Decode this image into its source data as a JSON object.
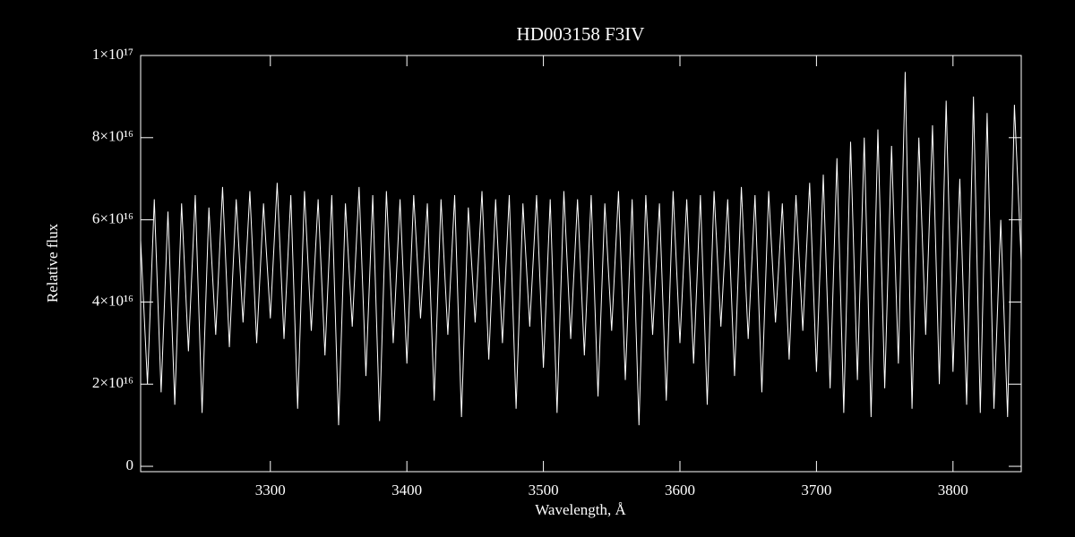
{
  "chart_data": {
    "type": "line",
    "title": "HD003158   F3IV",
    "xlabel": "Wavelength, Å",
    "ylabel": "Relative flux",
    "color": "#ffffff",
    "xlim": [
      3205,
      3850
    ],
    "ylim": [
      -1300000000000000.0,
      1e+17
    ],
    "xticks": [
      3300,
      3400,
      3500,
      3600,
      3700,
      3800
    ],
    "yticks": [
      0,
      {
        "value": 2e+16,
        "label": "2×10¹⁶"
      },
      {
        "value": 4e+16,
        "label": "4×10¹⁶"
      },
      {
        "value": 6e+16,
        "label": "6×10¹⁶"
      },
      {
        "value": 8e+16,
        "label": "8×10¹⁶"
      },
      {
        "value": 1e+17,
        "label": "1×10¹⁷"
      }
    ],
    "x": [
      3205,
      3210,
      3215,
      3220,
      3225,
      3230,
      3235,
      3240,
      3245,
      3250,
      3255,
      3260,
      3265,
      3270,
      3275,
      3280,
      3285,
      3290,
      3295,
      3300,
      3305,
      3310,
      3315,
      3320,
      3325,
      3330,
      3335,
      3340,
      3345,
      3350,
      3355,
      3360,
      3365,
      3370,
      3375,
      3380,
      3385,
      3390,
      3395,
      3400,
      3405,
      3410,
      3415,
      3420,
      3425,
      3430,
      3435,
      3440,
      3445,
      3450,
      3455,
      3460,
      3465,
      3470,
      3475,
      3480,
      3485,
      3490,
      3495,
      3500,
      3505,
      3510,
      3515,
      3520,
      3525,
      3530,
      3535,
      3540,
      3545,
      3550,
      3555,
      3560,
      3565,
      3570,
      3575,
      3580,
      3585,
      3590,
      3595,
      3600,
      3605,
      3610,
      3615,
      3620,
      3625,
      3630,
      3635,
      3640,
      3645,
      3650,
      3655,
      3660,
      3665,
      3670,
      3675,
      3680,
      3685,
      3690,
      3695,
      3700,
      3705,
      3710,
      3715,
      3720,
      3725,
      3730,
      3735,
      3740,
      3745,
      3750,
      3755,
      3760,
      3765,
      3770,
      3775,
      3780,
      3785,
      3790,
      3795,
      3800,
      3805,
      3810,
      3815,
      3820,
      3825,
      3830,
      3835,
      3840,
      3845,
      3850
    ],
    "values": [
      5.5e+16,
      2e+16,
      6.5e+16,
      1.8e+16,
      6.2e+16,
      1.5e+16,
      6.4e+16,
      2.8e+16,
      6.6e+16,
      1.3e+16,
      6.3e+16,
      3.2e+16,
      6.8e+16,
      2.9e+16,
      6.5e+16,
      3.5e+16,
      6.7e+16,
      3e+16,
      6.4e+16,
      3.6e+16,
      6.9e+16,
      3.1e+16,
      6.6e+16,
      1.4e+16,
      6.7e+16,
      3.3e+16,
      6.5e+16,
      2.7e+16,
      6.6e+16,
      1e+16,
      6.4e+16,
      3.4e+16,
      6.8e+16,
      2.2e+16,
      6.6e+16,
      1.1e+16,
      6.7e+16,
      3e+16,
      6.5e+16,
      2.5e+16,
      6.6e+16,
      3.6e+16,
      6.4e+16,
      1.6e+16,
      6.5e+16,
      3.2e+16,
      6.6e+16,
      1.2e+16,
      6.3e+16,
      3.5e+16,
      6.7e+16,
      2.6e+16,
      6.5e+16,
      3e+16,
      6.6e+16,
      1.4e+16,
      6.4e+16,
      3.4e+16,
      6.6e+16,
      2.4e+16,
      6.5e+16,
      1.3e+16,
      6.7e+16,
      3.1e+16,
      6.5e+16,
      2.7e+16,
      6.6e+16,
      1.7e+16,
      6.4e+16,
      3.3e+16,
      6.7e+16,
      2.1e+16,
      6.5e+16,
      1e+16,
      6.6e+16,
      3.2e+16,
      6.4e+16,
      1.6e+16,
      6.7e+16,
      3e+16,
      6.5e+16,
      2.5e+16,
      6.6e+16,
      1.5e+16,
      6.7e+16,
      3.4e+16,
      6.5e+16,
      2.2e+16,
      6.8e+16,
      3.1e+16,
      6.6e+16,
      1.8e+16,
      6.7e+16,
      3.5e+16,
      6.4e+16,
      2.6e+16,
      6.6e+16,
      3.3e+16,
      6.9e+16,
      2.3e+16,
      7.1e+16,
      1.9e+16,
      7.5e+16,
      1.3e+16,
      7.9e+16,
      2.1e+16,
      8e+16,
      1.2e+16,
      8.2e+16,
      1.9e+16,
      7.8e+16,
      2.5e+16,
      9.6e+16,
      1.4e+16,
      8e+16,
      3.2e+16,
      8.3e+16,
      2e+16,
      8.9e+16,
      2.3e+16,
      7e+16,
      1.5e+16,
      9e+16,
      1.3e+16,
      8.6e+16,
      1.4e+16,
      6e+16,
      1.2e+16,
      8.8e+16,
      5e+16
    ]
  }
}
